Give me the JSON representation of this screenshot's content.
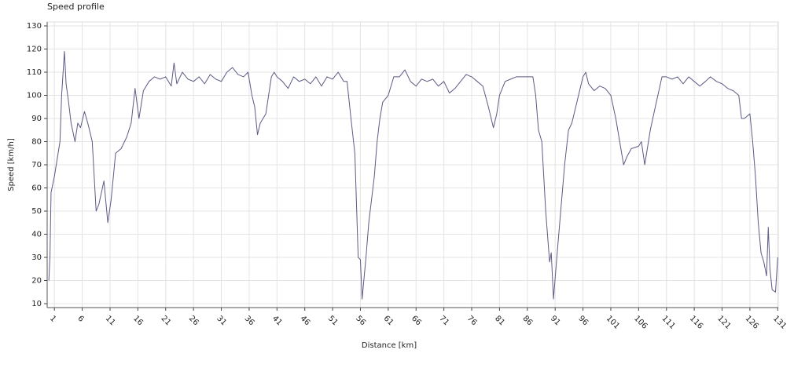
{
  "chart_data": {
    "type": "line",
    "title": "Speed profile",
    "xlabel": "Distance [km]",
    "ylabel": "Speed [km/h]",
    "x": [
      0,
      0.2,
      0.4,
      1,
      2,
      2.3,
      2.8,
      3.1,
      3.5,
      4,
      4.7,
      5.2,
      5.7,
      6.4,
      7,
      7.8,
      8.5,
      9,
      9.9,
      10.6,
      11.2,
      12,
      13,
      14,
      14.8,
      15.5,
      16.2,
      17,
      18,
      19,
      20,
      21,
      22,
      22.5,
      23,
      24,
      25,
      26,
      27,
      28,
      29,
      30,
      31,
      32,
      33,
      34,
      35,
      35.8,
      36.5,
      37,
      37.5,
      38,
      39,
      40,
      40.5,
      41,
      42,
      43,
      44,
      45,
      46,
      47,
      48,
      49,
      50,
      51,
      52,
      53,
      53.6,
      54.3,
      55,
      55.6,
      56,
      56.3,
      57,
      57.5,
      58,
      58.5,
      59,
      59.5,
      60,
      61,
      62,
      63,
      64,
      65,
      66,
      67,
      68,
      69,
      70,
      71,
      72,
      73,
      74,
      75,
      76,
      77,
      78,
      79,
      79.9,
      80.5,
      81,
      82,
      83,
      84,
      85,
      86,
      87,
      87.5,
      88,
      88.6,
      89.3,
      90,
      90.3,
      90.7,
      91.3,
      92,
      92.7,
      93.4,
      94,
      95,
      96,
      96.5,
      97,
      98,
      99,
      100,
      101,
      101.9,
      103.3,
      104,
      104.7,
      106,
      106.5,
      107.1,
      108.1,
      109,
      110.2,
      111,
      112,
      113,
      114,
      115,
      116,
      117,
      118,
      118.9,
      120,
      121,
      122,
      123,
      124,
      124.5,
      125,
      126,
      126.5,
      127,
      127.5,
      128,
      128.5,
      129,
      129.3,
      129.6,
      130,
      130.6,
      131
    ],
    "values": [
      20,
      30,
      58,
      65,
      80,
      100,
      119,
      105,
      98,
      88,
      80,
      88,
      86,
      93,
      88,
      80,
      50,
      53,
      63,
      45,
      55,
      75,
      77,
      82,
      88,
      103,
      90,
      102,
      106,
      108,
      107,
      108,
      104,
      114,
      105,
      110,
      107,
      106,
      108,
      105,
      109,
      107,
      106,
      110,
      112,
      109,
      108,
      110,
      100,
      95,
      83,
      88,
      92,
      108,
      110,
      108,
      106,
      103,
      108,
      106,
      107,
      105,
      108,
      104,
      108,
      107,
      110,
      106,
      106,
      90,
      75,
      30,
      29,
      12,
      30,
      45,
      55,
      65,
      80,
      90,
      97,
      100,
      108,
      108,
      111,
      106,
      104,
      107,
      106,
      107,
      104,
      106,
      101,
      103,
      106,
      109,
      108,
      106,
      104,
      95,
      86,
      92,
      100,
      106,
      107,
      108,
      108,
      108,
      108,
      100,
      85,
      80,
      50,
      28,
      32,
      12,
      30,
      50,
      70,
      85,
      88,
      98,
      108,
      110,
      105,
      102,
      104,
      103,
      100,
      90,
      70,
      74,
      77,
      78,
      80,
      70,
      85,
      95,
      108,
      108,
      107,
      108,
      105,
      108,
      106,
      104,
      106,
      108,
      106,
      105,
      103,
      102,
      100,
      90,
      90,
      92,
      80,
      65,
      45,
      32,
      28,
      22,
      43,
      25,
      16,
      15,
      30
    ],
    "color": "#5b5b85",
    "xlim": [
      -0.3,
      131.1
    ],
    "xticks": [
      1,
      6,
      11,
      16,
      21,
      26,
      31,
      36,
      41,
      46,
      51,
      56,
      61,
      66,
      71,
      76,
      81,
      86,
      91,
      96,
      101,
      106,
      111,
      116,
      121,
      126,
      131
    ],
    "ylim": [
      8.3,
      131.7
    ],
    "yticks": [
      10,
      20,
      30,
      40,
      50,
      60,
      70,
      80,
      90,
      100,
      110,
      120,
      130
    ],
    "grid": true
  }
}
